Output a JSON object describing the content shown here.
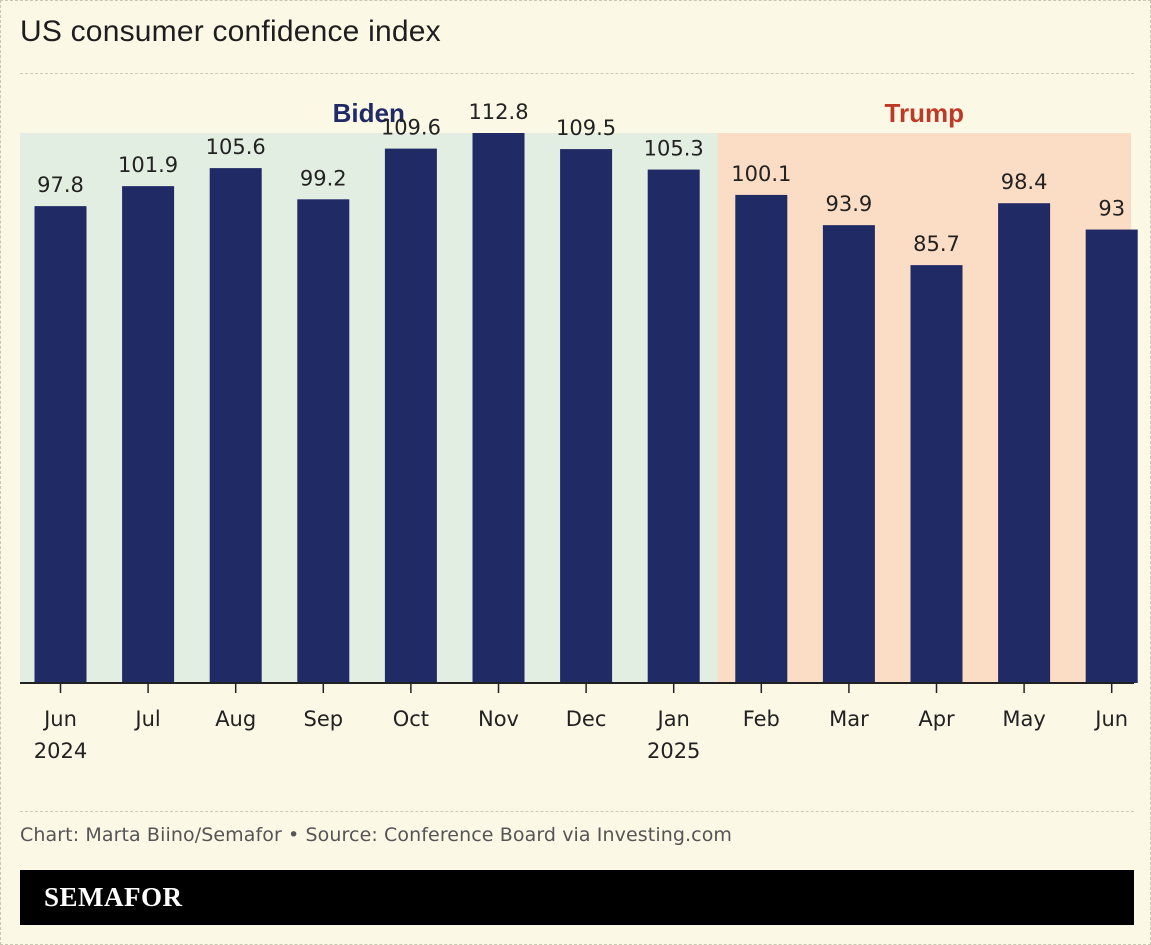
{
  "title": "US consumer confidence index",
  "credit": "Chart: Marta Biino/Semafor • Source: Conference Board via Investing.com",
  "brand": "SEMAFOR",
  "colors": {
    "bar": "#202a64",
    "biden_bg": "#e3eee3",
    "trump_bg": "#fbdcc4",
    "biden_text": "#1f2a66",
    "trump_text": "#bf3a26",
    "axis": "#222222"
  },
  "chart_data": {
    "type": "bar",
    "title": "US consumer confidence index",
    "xlabel": "",
    "ylabel": "",
    "ylim": [
      0,
      112.8
    ],
    "grid": false,
    "categories": [
      [
        "Jun",
        "2024"
      ],
      [
        "Jul"
      ],
      [
        "Aug"
      ],
      [
        "Sep"
      ],
      [
        "Oct"
      ],
      [
        "Nov"
      ],
      [
        "Dec"
      ],
      [
        "Jan",
        "2025"
      ],
      [
        "Feb"
      ],
      [
        "Mar"
      ],
      [
        "Apr"
      ],
      [
        "May"
      ],
      [
        "Jun"
      ]
    ],
    "values": [
      97.8,
      101.9,
      105.6,
      99.2,
      109.6,
      112.8,
      109.5,
      105.3,
      100.1,
      93.9,
      85.7,
      98.4,
      93
    ],
    "value_labels": [
      "97.8",
      "101.9",
      "105.6",
      "99.2",
      "109.6",
      "112.8",
      "109.5",
      "105.3",
      "100.1",
      "93.9",
      "85.7",
      "98.4",
      "93"
    ],
    "periods": [
      {
        "label": "Biden",
        "start_index": 0,
        "end_index": 7,
        "color_key": "biden"
      },
      {
        "label": "Trump",
        "start_index": 8,
        "end_index": 12,
        "color_key": "trump"
      }
    ]
  }
}
